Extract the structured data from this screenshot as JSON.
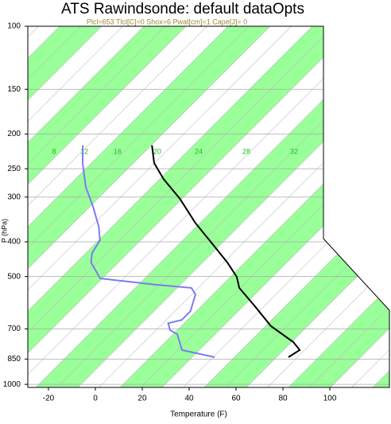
{
  "chart_data": {
    "type": "skewt",
    "title": "ATS Rawindsonde: default dataOpts",
    "subtitle": "Plcl=653 Tlcl[C]=0 Shox=6 Pwat[cm]=1 Cape[J]= 0",
    "x_label": "Temperature (F)",
    "y_label": "P (hPa)",
    "xlim": [
      -28.8,
      125.4
    ],
    "xticks": [
      -20,
      0,
      20,
      40,
      60,
      80,
      100
    ],
    "ylim": [
      100,
      1020
    ],
    "yticks": [
      100,
      150,
      200,
      250,
      300,
      400,
      500,
      700,
      850,
      1000
    ],
    "log_y": true,
    "grid": true,
    "mixing_ratio_labels": [
      8,
      12,
      16,
      20,
      24,
      28,
      32
    ],
    "series": [
      {
        "color": "#000000",
        "pressure": [
          840,
          802,
          762,
          688,
          606,
          538,
          501,
          457,
          402,
          354,
          303,
          267,
          241,
          215
        ],
        "values": [
          69.5,
          71.2,
          65.1,
          48.8,
          33.6,
          19.0,
          13.2,
          3.1,
          -12.2,
          -27.5,
          -44.4,
          -59.7,
          -70.5,
          -79
        ]
      },
      {
        "color": "#7b7bf0",
        "pressure": [
          840,
          802,
          724,
          706,
          675,
          661,
          625,
          561,
          538,
          527,
          506,
          457,
          430,
          396,
          363,
          319,
          281,
          241,
          215
        ],
        "values": [
          38,
          21,
          12.2,
          7.5,
          3.7,
          8.1,
          8.1,
          3.1,
          -1.4,
          -18,
          -44.4,
          -55,
          -58.6,
          -60.7,
          -67,
          -78,
          -89.5,
          -101,
          -108.5
        ]
      }
    ]
  }
}
